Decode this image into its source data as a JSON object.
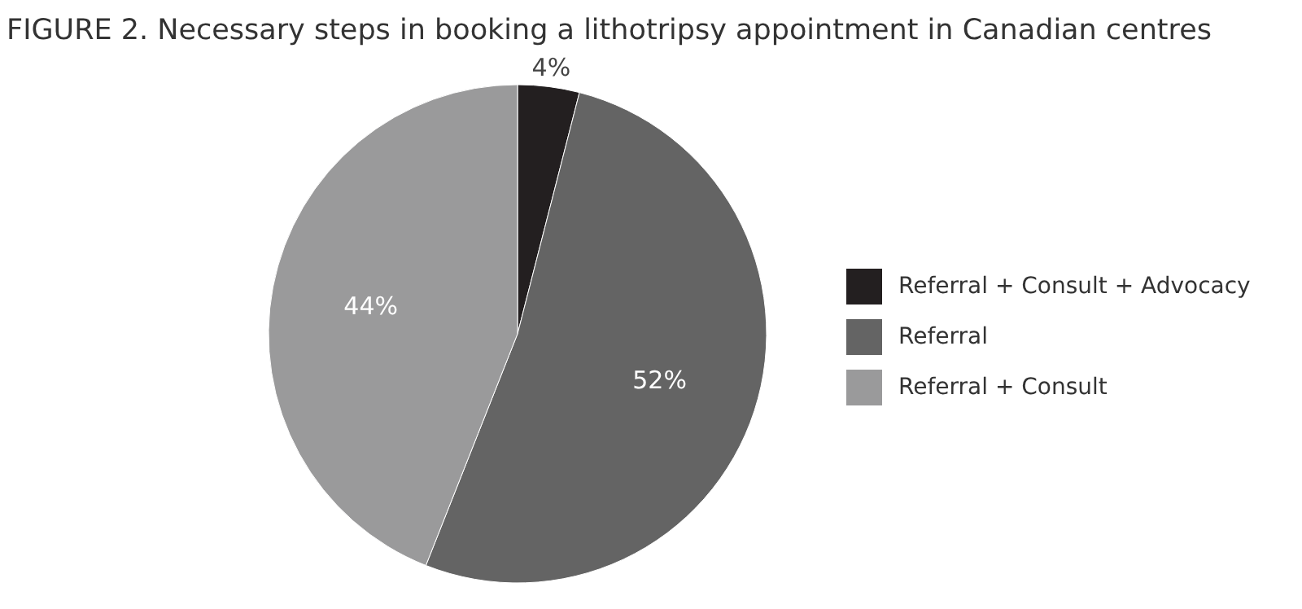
{
  "chart_data": {
    "type": "pie",
    "title": "FIGURE 2. Necessary steps in booking a lithotripsy appointment in Canadian centres",
    "categories": [
      "Referral + Consult + Advocacy",
      "Referral",
      "Referral + Consult"
    ],
    "values": [
      4,
      52,
      44
    ],
    "colors": [
      "#231f20",
      "#646464",
      "#9a9a9b"
    ],
    "value_labels": [
      "4%",
      "52%",
      "44%"
    ],
    "legend": "right"
  }
}
